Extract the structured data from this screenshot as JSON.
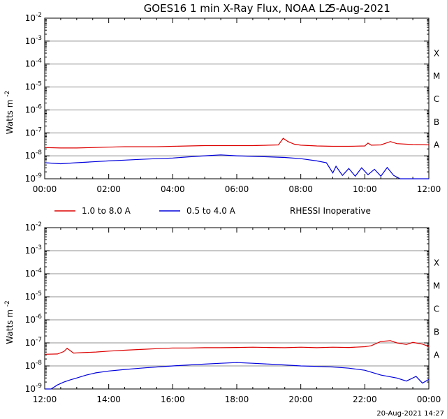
{
  "header": {
    "title": "GOES16 1 min X-Ray Flux, NOAA L2",
    "date": "5-Aug-2021"
  },
  "footer": {
    "timestamp": "20-Aug-2021 14:27"
  },
  "legend": {
    "items": [
      {
        "label": "1.0 to 8.0 A",
        "color": "#dd0000"
      },
      {
        "label": "0.5 to 4.0 A",
        "color": "#0000dd"
      }
    ],
    "note": "RHESSI Inoperative"
  },
  "axis_shared": {
    "ylabel": "Watts m",
    "ylabel_exp": "-2",
    "ytick_base": "10",
    "ytick_exps": [
      "-2",
      "-3",
      "-4",
      "-5",
      "-6",
      "-7",
      "-8",
      "-9"
    ],
    "class_labels": [
      {
        "label": "X",
        "exp": -4
      },
      {
        "label": "M",
        "exp": -5
      },
      {
        "label": "C",
        "exp": -6
      },
      {
        "label": "B",
        "exp": -7
      },
      {
        "label": "A",
        "exp": -8
      }
    ]
  },
  "chart_data": [
    {
      "type": "line",
      "y_scale": "log",
      "ylim": [
        1e-09,
        0.01
      ],
      "x_unit": "hours UT",
      "xlim": [
        0,
        12
      ],
      "xticks": [
        "00:00",
        "02:00",
        "04:00",
        "06:00",
        "08:00",
        "10:00",
        "12:00"
      ],
      "series": [
        {
          "name": "1.0 to 8.0 A",
          "color": "#dd0000",
          "x": [
            0,
            0.5,
            1,
            1.5,
            2,
            2.5,
            3,
            3.5,
            4,
            4.5,
            5,
            5.5,
            6,
            6.5,
            7,
            7.3,
            7.45,
            7.6,
            7.8,
            8,
            8.5,
            9,
            9.5,
            10,
            10.1,
            10.2,
            10.5,
            10.8,
            11,
            11.5,
            12
          ],
          "y": [
            2.3e-08,
            2.2e-08,
            2.2e-08,
            2.3e-08,
            2.4e-08,
            2.5e-08,
            2.5e-08,
            2.5e-08,
            2.6e-08,
            2.7e-08,
            2.8e-08,
            2.8e-08,
            2.8e-08,
            2.8e-08,
            2.9e-08,
            3e-08,
            5.8e-08,
            4.2e-08,
            3.2e-08,
            2.9e-08,
            2.7e-08,
            2.6e-08,
            2.6e-08,
            2.7e-08,
            3.6e-08,
            2.9e-08,
            3e-08,
            4.2e-08,
            3.4e-08,
            3.1e-08,
            3e-08
          ]
        },
        {
          "name": "0.5 to 4.0 A",
          "color": "#0000dd",
          "x": [
            0,
            0.5,
            1,
            1.5,
            2,
            2.5,
            3,
            3.5,
            4,
            4.5,
            5,
            5.5,
            6,
            6.5,
            7,
            7.5,
            8,
            8.5,
            8.8,
            9,
            9.1,
            9.3,
            9.5,
            9.7,
            9.9,
            10.1,
            10.3,
            10.5,
            10.7,
            10.9,
            11.1,
            11.5,
            12
          ],
          "y": [
            5e-09,
            4.5e-09,
            5e-09,
            5.5e-09,
            6e-09,
            6.5e-09,
            7e-09,
            7.5e-09,
            8e-09,
            9e-09,
            1e-08,
            1.1e-08,
            1e-08,
            9.5e-09,
            9e-09,
            8.5e-09,
            7.5e-09,
            6e-09,
            5e-09,
            1.8e-09,
            3.5e-09,
            1.4e-09,
            2.8e-09,
            1.3e-09,
            3e-09,
            1.5e-09,
            2.6e-09,
            1.3e-09,
            3.1e-09,
            1.4e-09,
            1e-09,
            1e-09,
            1e-09
          ]
        }
      ]
    },
    {
      "type": "line",
      "y_scale": "log",
      "ylim": [
        1e-09,
        0.01
      ],
      "x_unit": "hours UT",
      "xlim": [
        12,
        24
      ],
      "xticks": [
        "12:00",
        "14:00",
        "16:00",
        "18:00",
        "20:00",
        "22:00",
        "00:00"
      ],
      "series": [
        {
          "name": "1.0 to 8.0 A",
          "color": "#dd0000",
          "x": [
            12,
            12.4,
            12.6,
            12.7,
            12.9,
            13.2,
            13.6,
            14,
            14.5,
            15,
            15.5,
            16,
            16.5,
            17,
            17.5,
            18,
            18.5,
            19,
            19.5,
            20,
            20.5,
            21,
            21.5,
            22,
            22.2,
            22.5,
            22.8,
            23,
            23.3,
            23.5,
            23.8,
            24
          ],
          "y": [
            3.2e-08,
            3.3e-08,
            4.2e-08,
            5.8e-08,
            3.6e-08,
            3.8e-08,
            4e-08,
            4.4e-08,
            4.8e-08,
            5.2e-08,
            5.6e-08,
            6e-08,
            6e-08,
            6.2e-08,
            6.2e-08,
            6.3e-08,
            6.5e-08,
            6.3e-08,
            6.2e-08,
            6.5e-08,
            6.2e-08,
            6.5e-08,
            6.3e-08,
            6.8e-08,
            7.5e-08,
            1.15e-07,
            1.25e-07,
            1e-07,
            8.5e-08,
            1.05e-07,
            8.8e-08,
            7e-08
          ]
        },
        {
          "name": "0.5 to 4.0 A",
          "color": "#0000dd",
          "x": [
            12,
            12.2,
            12.4,
            12.6,
            12.8,
            13,
            13.3,
            13.6,
            14,
            14.5,
            15,
            15.5,
            16,
            16.5,
            17,
            17.5,
            18,
            18.5,
            19,
            19.5,
            20,
            20.5,
            21,
            21.5,
            22,
            22.5,
            23,
            23.3,
            23.6,
            23.8,
            24
          ],
          "y": [
            1e-09,
            1e-09,
            1.5e-09,
            2e-09,
            2.5e-09,
            3e-09,
            4e-09,
            5e-09,
            6e-09,
            7e-09,
            8e-09,
            9e-09,
            1e-08,
            1.1e-08,
            1.2e-08,
            1.3e-08,
            1.4e-08,
            1.3e-08,
            1.2e-08,
            1.1e-08,
            1e-08,
            9.5e-09,
            9e-09,
            8e-09,
            6.5e-09,
            4e-09,
            3e-09,
            2.2e-09,
            3.5e-09,
            1.8e-09,
            2.6e-09
          ]
        }
      ]
    }
  ]
}
